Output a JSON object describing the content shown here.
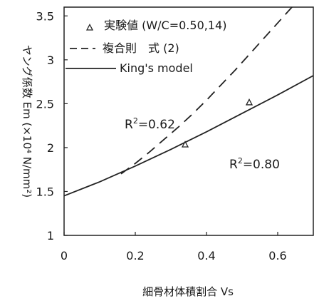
{
  "chart_data": {
    "type": "scatter",
    "xlabel": "細骨材体積割合 Vs",
    "ylabel": "ヤング係数 Em (×10⁴ N/mm²)",
    "xlim": [
      0,
      0.7
    ],
    "ylim": [
      1,
      3.6
    ],
    "x_ticks": [
      "0",
      "0.2",
      "0.4",
      "0.6"
    ],
    "y_ticks": [
      "1",
      "1.5",
      "2",
      "2.5",
      "3",
      "3.5"
    ],
    "grid": false,
    "legend_position": "top",
    "legend": [
      {
        "marker": "triangle",
        "label": "実験値 (W/C=0.50,14)"
      },
      {
        "marker": "dashed",
        "label": "複合則　式 (2)"
      },
      {
        "marker": "solid",
        "label": "King's model"
      }
    ],
    "annotations": {
      "r2_rule": {
        "label": "R²=0.62",
        "prefix": "R",
        "sup": "2",
        "value": "=0.62"
      },
      "r2_king": {
        "label": "R²=0.80",
        "prefix": "R",
        "sup": "2",
        "value": "=0.80"
      }
    },
    "experimental": {
      "x": [
        0.34,
        0.52
      ],
      "y": [
        2.04,
        2.52
      ]
    },
    "series": [
      {
        "name": "複合則　式 (2)",
        "style": "dashed",
        "x": [
          0.16,
          0.2,
          0.24,
          0.28,
          0.32,
          0.36,
          0.4,
          0.44,
          0.48,
          0.52,
          0.56,
          0.6,
          0.64,
          0.68
        ],
        "y": [
          1.7,
          1.82,
          1.95,
          2.09,
          2.23,
          2.38,
          2.54,
          2.71,
          2.88,
          3.06,
          3.24,
          3.42,
          3.6,
          3.78
        ]
      },
      {
        "name": "King's model",
        "style": "solid",
        "x": [
          0,
          0.1,
          0.2,
          0.3,
          0.4,
          0.5,
          0.6,
          0.7
        ],
        "y": [
          1.45,
          1.61,
          1.79,
          1.98,
          2.18,
          2.39,
          2.6,
          2.82
        ]
      }
    ]
  }
}
